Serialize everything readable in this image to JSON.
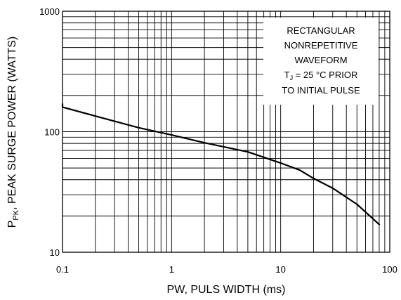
{
  "chart_data": {
    "type": "line",
    "title": "",
    "xlabel": "PW, PULS WIDTH (ms)",
    "ylabel": {
      "prefix": "P",
      "subscript": "PK",
      "suffix": ", PEAK SURGE POWER (WATTS)"
    },
    "x_scale": "log",
    "y_scale": "log",
    "xlim": [
      0.1,
      100
    ],
    "ylim": [
      10,
      1000
    ],
    "x_ticks": [
      {
        "value": 0.1,
        "label": "0.1"
      },
      {
        "value": 1,
        "label": "1"
      },
      {
        "value": 10,
        "label": "10"
      },
      {
        "value": 100,
        "label": "100"
      }
    ],
    "y_ticks": [
      {
        "value": 10,
        "label": "10"
      },
      {
        "value": 100,
        "label": "100"
      },
      {
        "value": 1000,
        "label": "1000"
      }
    ],
    "grid": true,
    "series": [
      {
        "x": [
          0.083,
          0.1,
          0.2,
          0.5,
          1,
          2,
          5,
          10,
          15,
          20,
          30,
          50,
          80
        ],
        "y": [
          170,
          160,
          135,
          108,
          94,
          81,
          68,
          55,
          48,
          41,
          34,
          25,
          17
        ]
      }
    ],
    "annotation": {
      "lines": [
        "RECTANGULAR",
        "NONREPETITIVE",
        "WAVEFORM"
      ],
      "temp_line": {
        "prefix": "T",
        "subscript": "J",
        "suffix": " = 25 °C PRIOR"
      },
      "last_line": "TO INITIAL PULSE"
    }
  }
}
